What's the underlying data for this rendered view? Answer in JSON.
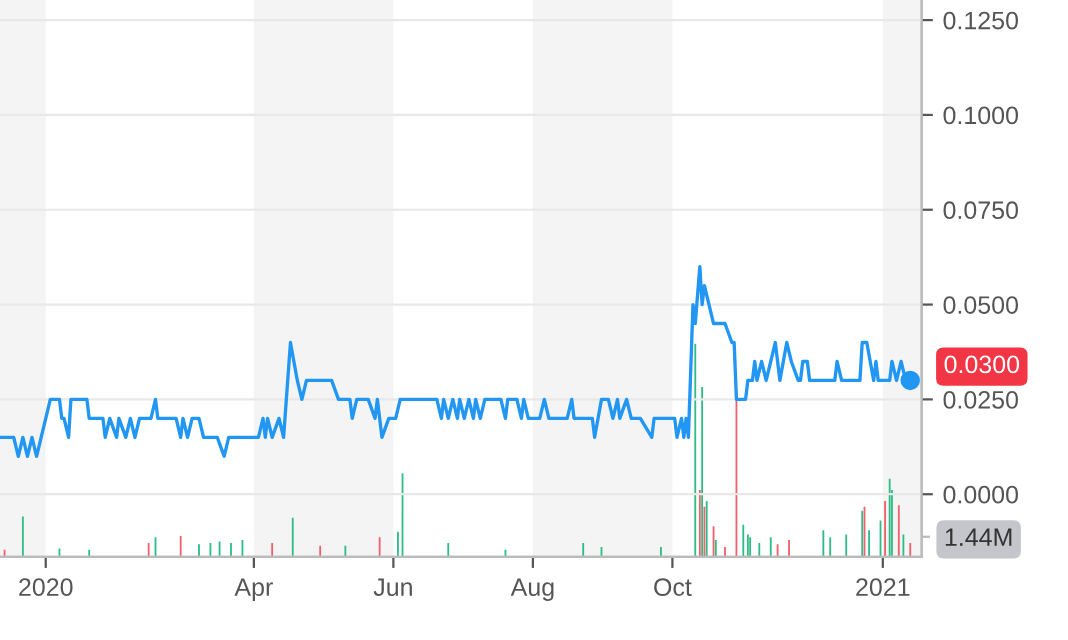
{
  "chart_data": {
    "type": "line",
    "xlim": [
      "2019-12-12",
      "2021-01-18"
    ],
    "xticks": [
      {
        "value": "2020-01-01",
        "label": "2020"
      },
      {
        "value": "2020-04-01",
        "label": "Apr"
      },
      {
        "value": "2020-06-01",
        "label": "Jun"
      },
      {
        "value": "2020-08-01",
        "label": "Aug"
      },
      {
        "value": "2020-10-01",
        "label": "Oct"
      },
      {
        "value": "2021-01-01",
        "label": "2021"
      }
    ],
    "ylim": [
      -0.0165,
      0.1303
    ],
    "yticks": [
      {
        "value": 0,
        "label": "0.0000"
      },
      {
        "value": 0.025,
        "label": "0.0250"
      },
      {
        "value": 0.05,
        "label": "0.0500"
      },
      {
        "value": 0.075,
        "label": "0.0750"
      },
      {
        "value": 0.1,
        "label": "0.1000"
      },
      {
        "value": 0.125,
        "label": "0.1250"
      }
    ],
    "y2lim": [
      0,
      40
    ],
    "y2ticks": [
      {
        "value": 1.44,
        "label": "1.44M"
      }
    ],
    "grid": "y",
    "bands": [
      {
        "axis": "x",
        "from": "2019-12-12",
        "to": "2020-01-01",
        "color": "#f4f4f4"
      },
      {
        "axis": "x",
        "from": "2020-04-01",
        "to": "2020-06-01",
        "color": "#f4f4f4"
      },
      {
        "axis": "x",
        "from": "2020-08-01",
        "to": "2020-10-01",
        "color": "#f4f4f4"
      },
      {
        "axis": "x",
        "from": "2021-01-01",
        "to": "2021-01-18",
        "color": "#f4f4f4"
      }
    ],
    "annotations": [
      {
        "text": "0.0300",
        "x": "2021-01-13",
        "y": 0.03
      }
    ],
    "series": [
      {
        "color": "#2196f3",
        "marker": "none",
        "line_style": "solid",
        "x": [
          "2019-12-12",
          "2019-12-18",
          "2019-12-20",
          "2019-12-22",
          "2019-12-24",
          "2019-12-26",
          "2019-12-28",
          "2019-12-30",
          "2020-01-01",
          "2020-01-03",
          "2020-01-07",
          "2020-01-08",
          "2020-01-09",
          "2020-01-11",
          "2020-01-12",
          "2020-01-19",
          "2020-01-20",
          "2020-01-26",
          "2020-01-27",
          "2020-01-29",
          "2020-02-01",
          "2020-02-02",
          "2020-02-05",
          "2020-02-07",
          "2020-02-09",
          "2020-02-11",
          "2020-02-16",
          "2020-02-18",
          "2020-02-19",
          "2020-02-27",
          "2020-02-29",
          "2020-03-01",
          "2020-03-03",
          "2020-03-05",
          "2020-03-08",
          "2020-03-10",
          "2020-03-16",
          "2020-03-19",
          "2020-03-21",
          "2020-04-03",
          "2020-04-05",
          "2020-04-06",
          "2020-04-07",
          "2020-04-09",
          "2020-04-12",
          "2020-04-14",
          "2020-04-17",
          "2020-04-20",
          "2020-04-22",
          "2020-04-24",
          "2020-05-05",
          "2020-05-08",
          "2020-05-13",
          "2020-05-14",
          "2020-05-16",
          "2020-05-21",
          "2020-05-24",
          "2020-05-25",
          "2020-05-27",
          "2020-05-30",
          "2020-06-02",
          "2020-06-04",
          "2020-06-20",
          "2020-06-22",
          "2020-06-23",
          "2020-06-25",
          "2020-06-27",
          "2020-06-29",
          "2020-06-30",
          "2020-07-02",
          "2020-07-04",
          "2020-07-06",
          "2020-07-07",
          "2020-07-09",
          "2020-07-11",
          "2020-07-18",
          "2020-07-20",
          "2020-07-21",
          "2020-07-25",
          "2020-07-27",
          "2020-07-28",
          "2020-07-30",
          "2020-08-04",
          "2020-08-06",
          "2020-08-08",
          "2020-08-16",
          "2020-08-18",
          "2020-08-19",
          "2020-08-27",
          "2020-08-28",
          "2020-08-31",
          "2020-09-03",
          "2020-09-05",
          "2020-09-07",
          "2020-09-08",
          "2020-09-11",
          "2020-09-13",
          "2020-09-17",
          "2020-09-22",
          "2020-09-23",
          "2020-10-02",
          "2020-10-03",
          "2020-10-05",
          "2020-10-06",
          "2020-10-07",
          "2020-10-08",
          "2020-10-10",
          "2020-10-11",
          "2020-10-13",
          "2020-10-14",
          "2020-10-15",
          "2020-10-17",
          "2020-10-19",
          "2020-10-24",
          "2020-10-27",
          "2020-10-28",
          "2020-10-29",
          "2020-11-02",
          "2020-11-03",
          "2020-11-05",
          "2020-11-06",
          "2020-11-07",
          "2020-11-09",
          "2020-11-11",
          "2020-11-15",
          "2020-11-17",
          "2020-11-20",
          "2020-11-22",
          "2020-11-25",
          "2020-11-26",
          "2020-11-27",
          "2020-11-29",
          "2020-11-30",
          "2020-12-11",
          "2020-12-12",
          "2020-12-14",
          "2020-12-22",
          "2020-12-23",
          "2020-12-25",
          "2020-12-28",
          "2020-12-29",
          "2020-12-30",
          "2021-01-04",
          "2021-01-05",
          "2021-01-07",
          "2021-01-09",
          "2021-01-11",
          "2021-01-13"
        ],
        "values": [
          0.015,
          0.015,
          0.01,
          0.015,
          0.01,
          0.015,
          0.01,
          0.015,
          0.02,
          0.025,
          0.025,
          0.02,
          0.02,
          0.015,
          0.025,
          0.025,
          0.02,
          0.02,
          0.015,
          0.02,
          0.015,
          0.02,
          0.015,
          0.02,
          0.015,
          0.02,
          0.02,
          0.025,
          0.02,
          0.02,
          0.015,
          0.02,
          0.015,
          0.02,
          0.02,
          0.015,
          0.015,
          0.01,
          0.015,
          0.015,
          0.02,
          0.015,
          0.02,
          0.015,
          0.02,
          0.015,
          0.04,
          0.03,
          0.025,
          0.03,
          0.03,
          0.025,
          0.025,
          0.02,
          0.025,
          0.025,
          0.02,
          0.025,
          0.015,
          0.02,
          0.02,
          0.025,
          0.025,
          0.02,
          0.025,
          0.02,
          0.025,
          0.02,
          0.025,
          0.02,
          0.025,
          0.02,
          0.025,
          0.02,
          0.025,
          0.025,
          0.02,
          0.025,
          0.025,
          0.02,
          0.025,
          0.02,
          0.02,
          0.025,
          0.02,
          0.02,
          0.025,
          0.02,
          0.02,
          0.015,
          0.025,
          0.025,
          0.02,
          0.025,
          0.02,
          0.025,
          0.02,
          0.02,
          0.015,
          0.02,
          0.02,
          0.015,
          0.02,
          0.015,
          0.02,
          0.015,
          0.05,
          0.045,
          0.06,
          0.05,
          0.055,
          0.05,
          0.045,
          0.045,
          0.04,
          0.04,
          0.025,
          0.025,
          0.03,
          0.03,
          0.035,
          0.03,
          0.035,
          0.03,
          0.04,
          0.03,
          0.04,
          0.035,
          0.03,
          0.03,
          0.035,
          0.035,
          0.03,
          0.03,
          0.035,
          0.03,
          0.03,
          0.04,
          0.04,
          0.03,
          0.035,
          0.03,
          0.03,
          0.035,
          0.03,
          0.035,
          0.03,
          0.03
        ]
      },
      {
        "type": "bar",
        "axis": "y2",
        "x": [
          "2019-12-14",
          "2019-12-22",
          "2020-01-07",
          "2020-01-20",
          "2020-02-15",
          "2020-02-18",
          "2020-02-29",
          "2020-03-08",
          "2020-03-13",
          "2020-03-17",
          "2020-03-22",
          "2020-03-27",
          "2020-04-09",
          "2020-04-18",
          "2020-04-30",
          "2020-05-11",
          "2020-05-26",
          "2020-06-03",
          "2020-06-05",
          "2020-06-25",
          "2020-07-20",
          "2020-08-23",
          "2020-08-31",
          "2020-09-26",
          "2020-10-11",
          "2020-10-13",
          "2020-10-14",
          "2020-10-15",
          "2020-10-16",
          "2020-10-19",
          "2020-10-20",
          "2020-10-24",
          "2020-10-29",
          "2020-11-01",
          "2020-11-03",
          "2020-11-04",
          "2020-11-08",
          "2020-11-13",
          "2020-11-16",
          "2020-11-21",
          "2020-12-06",
          "2020-12-09",
          "2020-12-16",
          "2020-12-23",
          "2020-12-24",
          "2020-12-26",
          "2020-12-31",
          "2021-01-02",
          "2021-01-04",
          "2021-01-05",
          "2021-01-08",
          "2021-01-10",
          "2021-01-13"
        ],
        "values": [
          0.5,
          2.9,
          0.6,
          0.5,
          1.0,
          1.4,
          1.5,
          0.9,
          1.0,
          1.1,
          1.0,
          1.2,
          1.0,
          2.8,
          0.8,
          0.8,
          1.4,
          1.8,
          6.0,
          1.0,
          0.5,
          1.0,
          0.7,
          0.7,
          15.3,
          4.8,
          12.2,
          3.6,
          4.0,
          2.2,
          1.2,
          0.7,
          11.2,
          2.3,
          1.6,
          1.4,
          1.0,
          1.4,
          0.9,
          1.2,
          1.9,
          1.4,
          1.6,
          3.3,
          3.6,
          1.9,
          2.6,
          4.0,
          5.6,
          4.8,
          3.7,
          1.6,
          1.0
        ],
        "colors": [
          "#f0616d",
          "#2ebd85",
          "#2ebd85",
          "#2ebd85",
          "#f0616d",
          "#2ebd85",
          "#f0616d",
          "#2ebd85",
          "#2ebd85",
          "#2ebd85",
          "#2ebd85",
          "#2ebd85",
          "#f0616d",
          "#2ebd85",
          "#f0616d",
          "#2ebd85",
          "#f0616d",
          "#2ebd85",
          "#2ebd85",
          "#2ebd85",
          "#2ebd85",
          "#2ebd85",
          "#2ebd85",
          "#2ebd85",
          "#2ebd85",
          "#f0616d",
          "#2ebd85",
          "#f0616d",
          "#2ebd85",
          "#f0616d",
          "#2ebd85",
          "#f0616d",
          "#f0616d",
          "#2ebd85",
          "#2ebd85",
          "#2ebd85",
          "#2ebd85",
          "#2ebd85",
          "#f0616d",
          "#f0616d",
          "#2ebd85",
          "#2ebd85",
          "#2ebd85",
          "#2ebd85",
          "#f0616d",
          "#2ebd85",
          "#2ebd85",
          "#f0616d",
          "#2ebd85",
          "#2ebd85",
          "#f0616d",
          "#2ebd85",
          "#f0616d"
        ]
      }
    ]
  }
}
